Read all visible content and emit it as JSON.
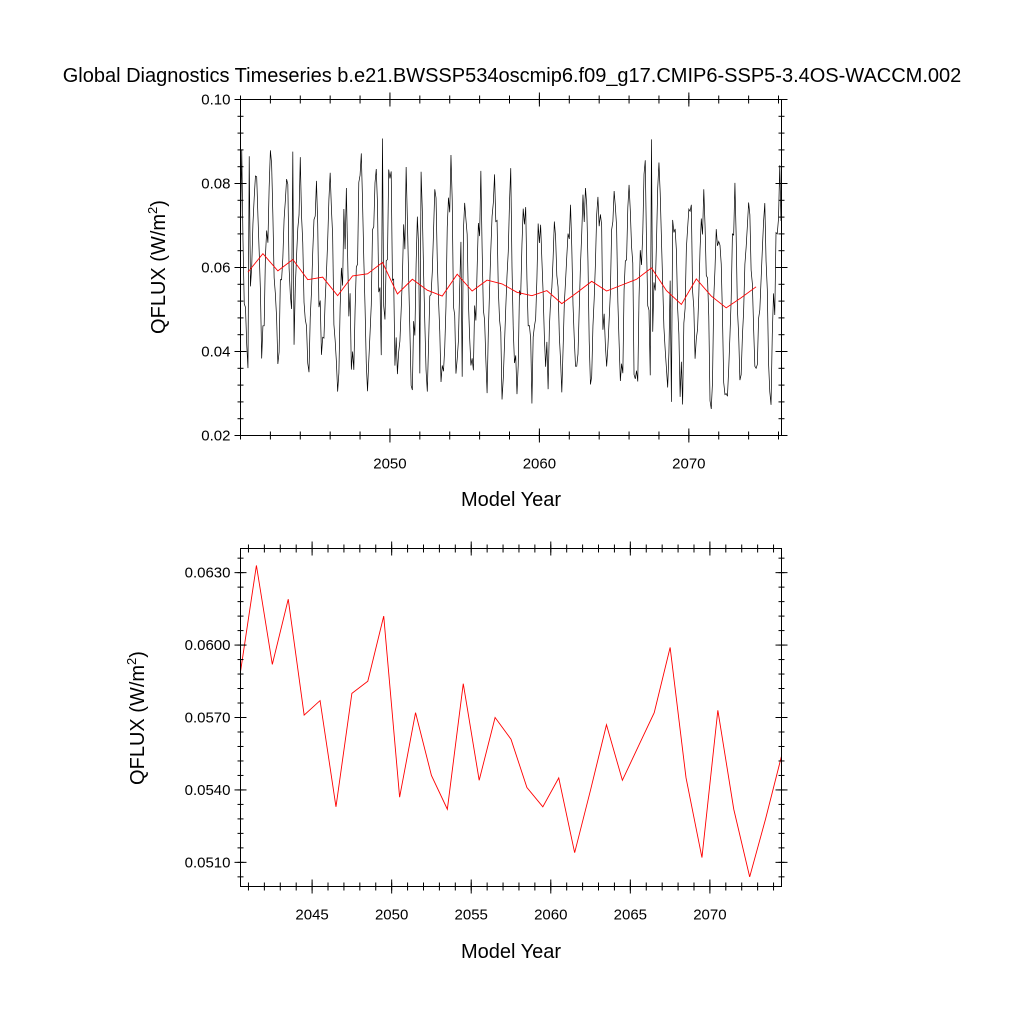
{
  "title": "Global Diagnostics Timeseries b.e21.BWSSP534oscmip6.f09_g17.CMIP6-SSP5-3.4OS-WACCM.002",
  "colors": {
    "monthly": "#000000",
    "annual": "#ff0000"
  },
  "chart_data": [
    {
      "type": "line",
      "panel": "top",
      "xlabel": "Model Year",
      "ylabel_base": "QFLUX (W/m",
      "ylabel_sup": "2",
      "ylabel_end": ")",
      "xlim": [
        2040.0,
        2076.2
      ],
      "ylim": [
        0.02,
        0.1
      ],
      "xticks": [
        2050,
        2060,
        2070
      ],
      "xtick_labels": [
        "2050",
        "2060",
        "2070"
      ],
      "yticks": [
        0.02,
        0.04,
        0.06,
        0.08,
        0.1
      ],
      "ytick_labels": [
        "0.02",
        "0.04",
        "0.06",
        "0.08",
        "0.10"
      ],
      "series": [
        {
          "name": "monthly",
          "color_key": "monthly",
          "start_year": 2040.0,
          "step": 0.0833333,
          "annual_pattern": [
            0.078,
            0.082,
            0.072,
            0.06,
            0.052,
            0.047,
            0.045,
            0.048,
            0.056,
            0.063,
            0.07,
            0.076
          ],
          "extremes": [
            {
              "x": 2040.6,
              "y": 0.0865
            },
            {
              "x": 2043.5,
              "y": 0.0876
            },
            {
              "x": 2049.5,
              "y": 0.0907
            },
            {
              "x": 2046.4,
              "y": 0.0375
            },
            {
              "x": 2052.0,
              "y": 0.0348
            },
            {
              "x": 2054.8,
              "y": 0.034
            },
            {
              "x": 2067.5,
              "y": 0.0905
            },
            {
              "x": 2068.8,
              "y": 0.028
            },
            {
              "x": 2066.3,
              "y": 0.0345
            },
            {
              "x": 2062.4,
              "y": 0.0365
            }
          ]
        },
        {
          "name": "annual",
          "color_key": "annual",
          "x": [
            2040.5,
            2041.5,
            2042.5,
            2043.5,
            2044.5,
            2045.5,
            2046.5,
            2047.5,
            2048.5,
            2049.5,
            2050.5,
            2051.5,
            2052.5,
            2053.5,
            2054.5,
            2055.5,
            2056.5,
            2057.5,
            2058.5,
            2059.5,
            2060.5,
            2061.5,
            2062.5,
            2063.5,
            2064.5,
            2065.5,
            2066.5,
            2067.5,
            2068.5,
            2069.5,
            2070.5,
            2071.5,
            2072.5,
            2073.5,
            2074.5
          ],
          "y": [
            0.0589,
            0.0633,
            0.0592,
            0.0619,
            0.0571,
            0.0577,
            0.0533,
            0.058,
            0.0585,
            0.0612,
            0.0537,
            0.0572,
            0.0546,
            0.0532,
            0.0584,
            0.0544,
            0.057,
            0.0561,
            0.0541,
            0.0533,
            0.0545,
            0.0514,
            0.054,
            0.0567,
            0.0544,
            0.0558,
            0.0572,
            0.0599,
            0.0545,
            0.0512,
            0.0573,
            0.0532,
            0.0504,
            0.0528,
            0.0554
          ]
        }
      ]
    },
    {
      "type": "line",
      "panel": "bottom",
      "xlabel": "Model Year",
      "ylabel_base": "QFLUX (W/m",
      "ylabel_sup": "2",
      "ylabel_end": ")",
      "xlim": [
        2040.5,
        2074.5
      ],
      "ylim": [
        0.05,
        0.064
      ],
      "xticks": [
        2045,
        2050,
        2055,
        2060,
        2065,
        2070
      ],
      "xtick_labels": [
        "2045",
        "2050",
        "2055",
        "2060",
        "2065",
        "2070"
      ],
      "yticks": [
        0.051,
        0.054,
        0.057,
        0.06,
        0.063
      ],
      "ytick_labels": [
        "0.0510",
        "0.0540",
        "0.0570",
        "0.0600",
        "0.0630"
      ],
      "series": [
        {
          "name": "annual",
          "color_key": "annual",
          "x": [
            2040.5,
            2041.5,
            2042.5,
            2043.5,
            2044.5,
            2045.5,
            2046.5,
            2047.5,
            2048.5,
            2049.5,
            2050.5,
            2051.5,
            2052.5,
            2053.5,
            2054.5,
            2055.5,
            2056.5,
            2057.5,
            2058.5,
            2059.5,
            2060.5,
            2061.5,
            2062.5,
            2063.5,
            2064.5,
            2065.5,
            2066.5,
            2067.5,
            2068.5,
            2069.5,
            2070.5,
            2071.5,
            2072.5,
            2073.5,
            2074.5
          ],
          "y": [
            0.0589,
            0.0633,
            0.0592,
            0.0619,
            0.0571,
            0.0577,
            0.0533,
            0.058,
            0.0585,
            0.0612,
            0.0537,
            0.0572,
            0.0546,
            0.0532,
            0.0584,
            0.0544,
            0.057,
            0.0561,
            0.0541,
            0.0533,
            0.0545,
            0.0514,
            0.054,
            0.0567,
            0.0544,
            0.0558,
            0.0572,
            0.0599,
            0.0545,
            0.0512,
            0.0573,
            0.0532,
            0.0504,
            0.0528,
            0.0554
          ]
        }
      ]
    }
  ]
}
